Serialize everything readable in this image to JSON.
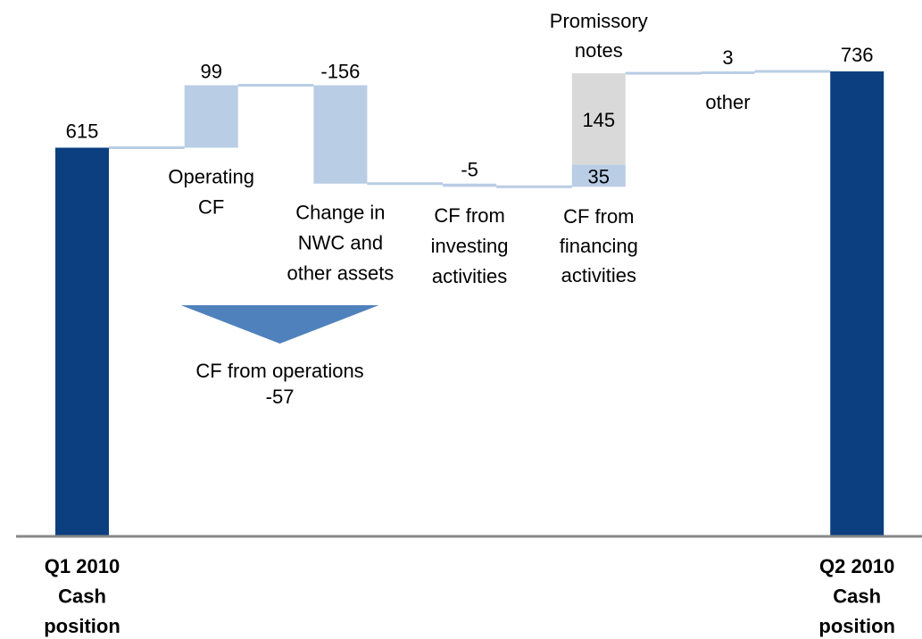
{
  "chart_data": {
    "type": "waterfall",
    "colors": {
      "total": "#0b3f7f",
      "change": "#b9cde5",
      "connector": "#b9cde5",
      "annotation": "#4f81bd",
      "axis": "#888888"
    },
    "steps": [
      {
        "label": [
          "Q1 2010",
          "Cash",
          "position"
        ],
        "value": 615,
        "total": true
      },
      {
        "label": [
          "Operating",
          "CF"
        ],
        "value": 99
      },
      {
        "label": [
          "Change in",
          "NWC and",
          "other assets"
        ],
        "value": -156
      },
      {
        "label": [
          "CF from",
          "investing",
          "activities"
        ],
        "value": -5
      },
      {
        "label": [
          "CF from",
          "financing",
          "activities"
        ],
        "segments": [
          {
            "value": 35
          },
          {
            "name": [
              "Promissory",
              "notes"
            ],
            "value": 145,
            "color": "#d9d9d9"
          }
        ]
      },
      {
        "label": [
          "other"
        ],
        "value": 3
      },
      {
        "label": [
          "Q2 2010",
          "Cash",
          "position"
        ],
        "value": 736,
        "total": true
      }
    ],
    "annotation": {
      "label": "CF from operations",
      "value": -57
    }
  }
}
